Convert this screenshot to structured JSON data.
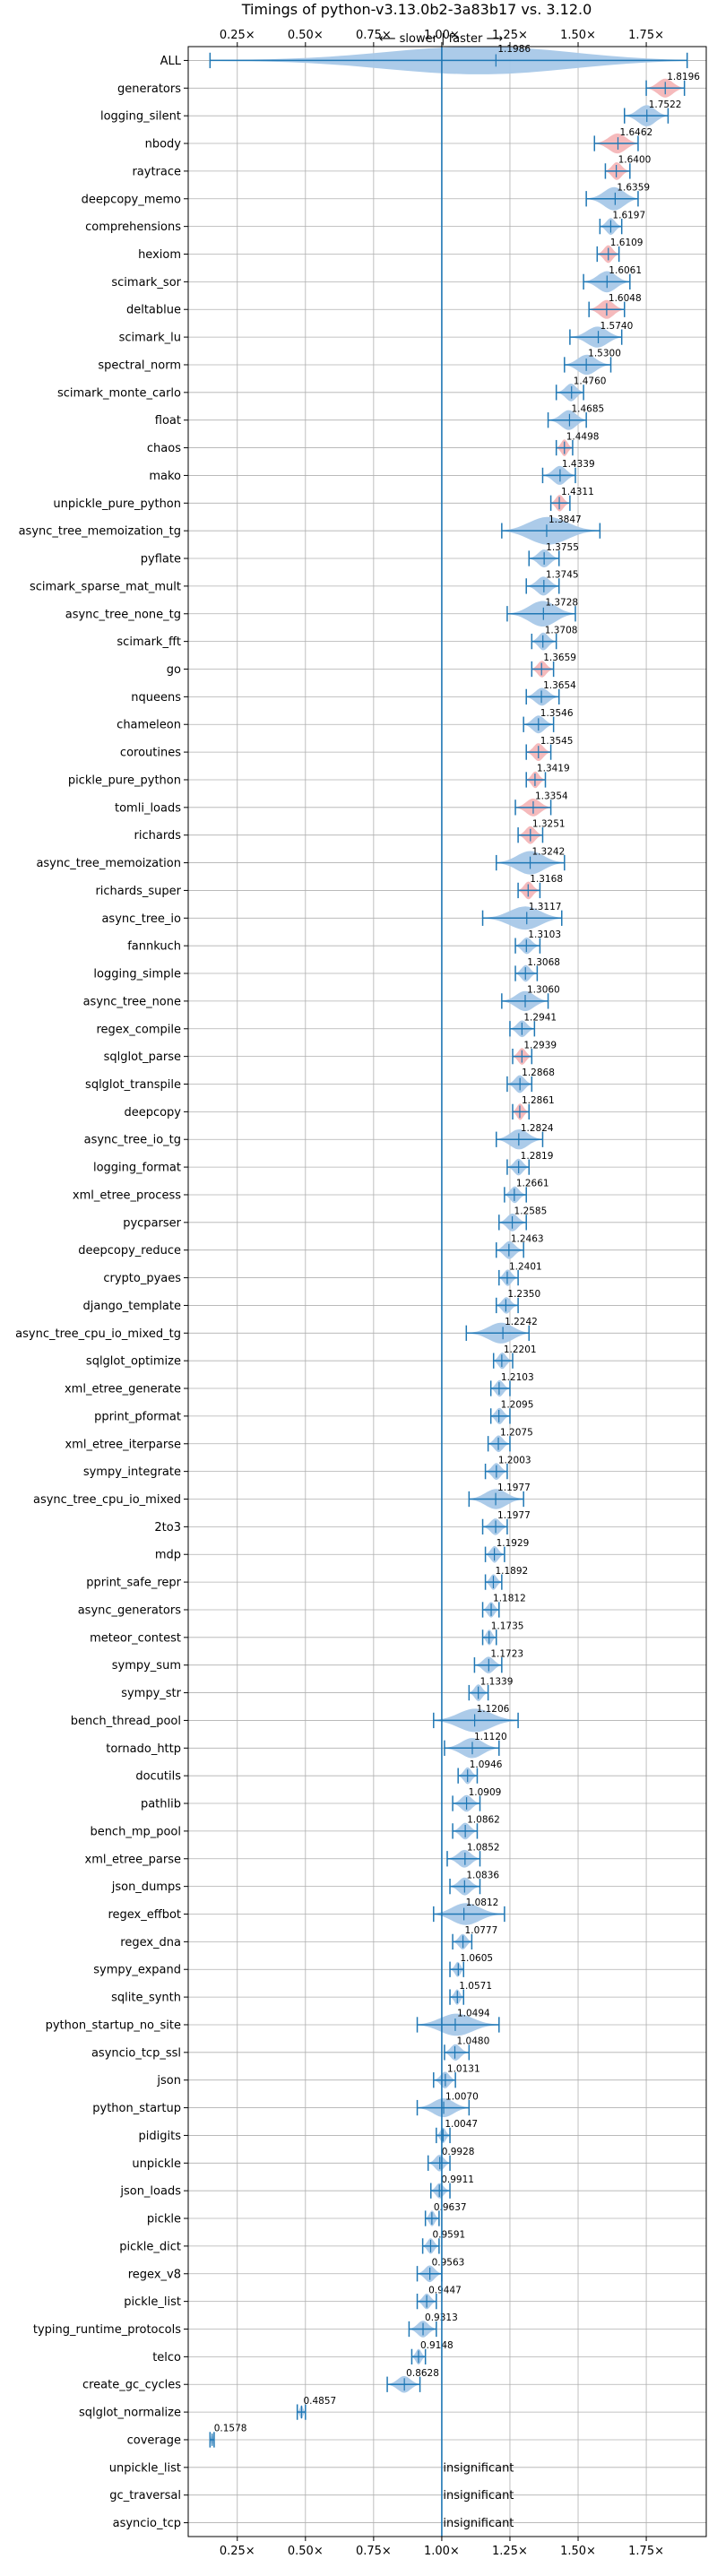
{
  "chart_data": {
    "type": "violin",
    "title": "Timings of python-v3.13.0b2-3a83b17 vs. 3.12.0",
    "direction_label": "⟵ slower | faster ⟶",
    "xlim": [
      0.07,
      1.97
    ],
    "xticks": [
      0.25,
      0.5,
      0.75,
      1.0,
      1.25,
      1.5,
      1.75
    ],
    "xtick_labels": [
      "0.25×",
      "0.50×",
      "0.75×",
      "1.00×",
      "1.25×",
      "1.50×",
      "1.75×"
    ],
    "reference_line": 1.0,
    "grid": true,
    "benchmarks": [
      {
        "name": "ALL",
        "value": 1.1986,
        "label": "1.1986",
        "lo": 0.15,
        "hi": 1.9,
        "spread": 0.5,
        "color": "blue"
      },
      {
        "name": "generators",
        "value": 1.8196,
        "label": "1.8196",
        "lo": 1.75,
        "hi": 1.89,
        "spread": 0.06,
        "color": "red"
      },
      {
        "name": "logging_silent",
        "value": 1.7522,
        "label": "1.7522",
        "lo": 1.67,
        "hi": 1.83,
        "spread": 0.08,
        "color": "blue"
      },
      {
        "name": "nbody",
        "value": 1.6462,
        "label": "1.6462",
        "lo": 1.56,
        "hi": 1.72,
        "spread": 0.07,
        "color": "red"
      },
      {
        "name": "raytrace",
        "value": 1.64,
        "label": "1.6400",
        "lo": 1.6,
        "hi": 1.69,
        "spread": 0.05,
        "color": "red"
      },
      {
        "name": "deepcopy_memo",
        "value": 1.6359,
        "label": "1.6359",
        "lo": 1.53,
        "hi": 1.72,
        "spread": 0.1,
        "color": "blue"
      },
      {
        "name": "comprehensions",
        "value": 1.6197,
        "label": "1.6197",
        "lo": 1.58,
        "hi": 1.66,
        "spread": 0.04,
        "color": "blue"
      },
      {
        "name": "hexiom",
        "value": 1.6109,
        "label": "1.6109",
        "lo": 1.57,
        "hi": 1.65,
        "spread": 0.05,
        "color": "red"
      },
      {
        "name": "scimark_sor",
        "value": 1.6061,
        "label": "1.6061",
        "lo": 1.52,
        "hi": 1.69,
        "spread": 0.08,
        "color": "blue"
      },
      {
        "name": "deltablue",
        "value": 1.6048,
        "label": "1.6048",
        "lo": 1.54,
        "hi": 1.67,
        "spread": 0.06,
        "color": "red"
      },
      {
        "name": "scimark_lu",
        "value": 1.574,
        "label": "1.5740",
        "lo": 1.47,
        "hi": 1.66,
        "spread": 0.08,
        "color": "blue"
      },
      {
        "name": "spectral_norm",
        "value": 1.53,
        "label": "1.5300",
        "lo": 1.45,
        "hi": 1.62,
        "spread": 0.07,
        "color": "blue"
      },
      {
        "name": "scimark_monte_carlo",
        "value": 1.476,
        "label": "1.4760",
        "lo": 1.42,
        "hi": 1.52,
        "spread": 0.05,
        "color": "blue"
      },
      {
        "name": "float",
        "value": 1.4685,
        "label": "1.4685",
        "lo": 1.39,
        "hi": 1.53,
        "spread": 0.07,
        "color": "blue"
      },
      {
        "name": "chaos",
        "value": 1.4498,
        "label": "1.4498",
        "lo": 1.42,
        "hi": 1.48,
        "spread": 0.04,
        "color": "red"
      },
      {
        "name": "mako",
        "value": 1.4339,
        "label": "1.4339",
        "lo": 1.37,
        "hi": 1.49,
        "spread": 0.06,
        "color": "blue"
      },
      {
        "name": "unpickle_pure_python",
        "value": 1.4311,
        "label": "1.4311",
        "lo": 1.4,
        "hi": 1.47,
        "spread": 0.04,
        "color": "red"
      },
      {
        "name": "async_tree_memoization_tg",
        "value": 1.3847,
        "label": "1.3847",
        "lo": 1.22,
        "hi": 1.58,
        "spread": 0.14,
        "color": "blue"
      },
      {
        "name": "pyflate",
        "value": 1.3755,
        "label": "1.3755",
        "lo": 1.32,
        "hi": 1.43,
        "spread": 0.05,
        "color": "blue"
      },
      {
        "name": "scimark_sparse_mat_mult",
        "value": 1.3745,
        "label": "1.3745",
        "lo": 1.31,
        "hi": 1.43,
        "spread": 0.06,
        "color": "blue"
      },
      {
        "name": "async_tree_none_tg",
        "value": 1.3728,
        "label": "1.3728",
        "lo": 1.24,
        "hi": 1.49,
        "spread": 0.12,
        "color": "blue"
      },
      {
        "name": "scimark_fft",
        "value": 1.3708,
        "label": "1.3708",
        "lo": 1.33,
        "hi": 1.42,
        "spread": 0.05,
        "color": "blue"
      },
      {
        "name": "go",
        "value": 1.3659,
        "label": "1.3659",
        "lo": 1.33,
        "hi": 1.41,
        "spread": 0.04,
        "color": "red"
      },
      {
        "name": "nqueens",
        "value": 1.3654,
        "label": "1.3654",
        "lo": 1.31,
        "hi": 1.43,
        "spread": 0.05,
        "color": "blue"
      },
      {
        "name": "chameleon",
        "value": 1.3546,
        "label": "1.3546",
        "lo": 1.3,
        "hi": 1.41,
        "spread": 0.05,
        "color": "blue"
      },
      {
        "name": "coroutines",
        "value": 1.3545,
        "label": "1.3545",
        "lo": 1.31,
        "hi": 1.4,
        "spread": 0.05,
        "color": "red"
      },
      {
        "name": "pickle_pure_python",
        "value": 1.3419,
        "label": "1.3419",
        "lo": 1.31,
        "hi": 1.38,
        "spread": 0.04,
        "color": "red"
      },
      {
        "name": "tomli_loads",
        "value": 1.3354,
        "label": "1.3354",
        "lo": 1.27,
        "hi": 1.4,
        "spread": 0.05,
        "color": "red"
      },
      {
        "name": "richards",
        "value": 1.3251,
        "label": "1.3251",
        "lo": 1.28,
        "hi": 1.37,
        "spread": 0.05,
        "color": "red"
      },
      {
        "name": "async_tree_memoization",
        "value": 1.3242,
        "label": "1.3242",
        "lo": 1.2,
        "hi": 1.45,
        "spread": 0.1,
        "color": "blue"
      },
      {
        "name": "richards_super",
        "value": 1.3168,
        "label": "1.3168",
        "lo": 1.28,
        "hi": 1.36,
        "spread": 0.05,
        "color": "red"
      },
      {
        "name": "async_tree_io",
        "value": 1.3117,
        "label": "1.3117",
        "lo": 1.15,
        "hi": 1.44,
        "spread": 0.1,
        "color": "blue"
      },
      {
        "name": "fannkuch",
        "value": 1.3103,
        "label": "1.3103",
        "lo": 1.27,
        "hi": 1.36,
        "spread": 0.04,
        "color": "blue"
      },
      {
        "name": "logging_simple",
        "value": 1.3068,
        "label": "1.3068",
        "lo": 1.27,
        "hi": 1.35,
        "spread": 0.04,
        "color": "blue"
      },
      {
        "name": "async_tree_none",
        "value": 1.306,
        "label": "1.3060",
        "lo": 1.22,
        "hi": 1.39,
        "spread": 0.07,
        "color": "blue"
      },
      {
        "name": "regex_compile",
        "value": 1.2941,
        "label": "1.2941",
        "lo": 1.25,
        "hi": 1.34,
        "spread": 0.04,
        "color": "blue"
      },
      {
        "name": "sqlglot_parse",
        "value": 1.2939,
        "label": "1.2939",
        "lo": 1.26,
        "hi": 1.33,
        "spread": 0.04,
        "color": "red"
      },
      {
        "name": "sqlglot_transpile",
        "value": 1.2868,
        "label": "1.2868",
        "lo": 1.24,
        "hi": 1.33,
        "spread": 0.05,
        "color": "blue"
      },
      {
        "name": "deepcopy",
        "value": 1.2861,
        "label": "1.2861",
        "lo": 1.26,
        "hi": 1.32,
        "spread": 0.04,
        "color": "red"
      },
      {
        "name": "async_tree_io_tg",
        "value": 1.2824,
        "label": "1.2824",
        "lo": 1.2,
        "hi": 1.37,
        "spread": 0.07,
        "color": "blue"
      },
      {
        "name": "logging_format",
        "value": 1.2819,
        "label": "1.2819",
        "lo": 1.24,
        "hi": 1.32,
        "spread": 0.04,
        "color": "blue"
      },
      {
        "name": "xml_etree_process",
        "value": 1.2661,
        "label": "1.2661",
        "lo": 1.23,
        "hi": 1.31,
        "spread": 0.04,
        "color": "blue"
      },
      {
        "name": "pycparser",
        "value": 1.2585,
        "label": "1.2585",
        "lo": 1.21,
        "hi": 1.31,
        "spread": 0.05,
        "color": "blue"
      },
      {
        "name": "deepcopy_reduce",
        "value": 1.2463,
        "label": "1.2463",
        "lo": 1.2,
        "hi": 1.3,
        "spread": 0.05,
        "color": "blue"
      },
      {
        "name": "crypto_pyaes",
        "value": 1.2401,
        "label": "1.2401",
        "lo": 1.21,
        "hi": 1.28,
        "spread": 0.04,
        "color": "blue"
      },
      {
        "name": "django_template",
        "value": 1.235,
        "label": "1.2350",
        "lo": 1.2,
        "hi": 1.28,
        "spread": 0.04,
        "color": "blue"
      },
      {
        "name": "async_tree_cpu_io_mixed_tg",
        "value": 1.2242,
        "label": "1.2242",
        "lo": 1.09,
        "hi": 1.32,
        "spread": 0.08,
        "color": "blue"
      },
      {
        "name": "sqlglot_optimize",
        "value": 1.2201,
        "label": "1.2201",
        "lo": 1.19,
        "hi": 1.26,
        "spread": 0.04,
        "color": "blue"
      },
      {
        "name": "xml_etree_generate",
        "value": 1.2103,
        "label": "1.2103",
        "lo": 1.18,
        "hi": 1.25,
        "spread": 0.04,
        "color": "blue"
      },
      {
        "name": "pprint_pformat",
        "value": 1.2095,
        "label": "1.2095",
        "lo": 1.18,
        "hi": 1.25,
        "spread": 0.04,
        "color": "blue"
      },
      {
        "name": "xml_etree_iterparse",
        "value": 1.2075,
        "label": "1.2075",
        "lo": 1.17,
        "hi": 1.25,
        "spread": 0.04,
        "color": "blue"
      },
      {
        "name": "sympy_integrate",
        "value": 1.2003,
        "label": "1.2003",
        "lo": 1.16,
        "hi": 1.24,
        "spread": 0.04,
        "color": "blue"
      },
      {
        "name": "async_tree_cpu_io_mixed",
        "value": 1.1977,
        "label": "1.1977",
        "lo": 1.1,
        "hi": 1.3,
        "spread": 0.07,
        "color": "blue"
      },
      {
        "name": "2to3",
        "value": 1.1977,
        "label": "1.1977",
        "lo": 1.15,
        "hi": 1.24,
        "spread": 0.04,
        "color": "blue"
      },
      {
        "name": "mdp",
        "value": 1.1929,
        "label": "1.1929",
        "lo": 1.16,
        "hi": 1.23,
        "spread": 0.04,
        "color": "blue"
      },
      {
        "name": "pprint_safe_repr",
        "value": 1.1892,
        "label": "1.1892",
        "lo": 1.16,
        "hi": 1.22,
        "spread": 0.03,
        "color": "blue"
      },
      {
        "name": "async_generators",
        "value": 1.1812,
        "label": "1.1812",
        "lo": 1.15,
        "hi": 1.21,
        "spread": 0.03,
        "color": "blue"
      },
      {
        "name": "meteor_contest",
        "value": 1.1735,
        "label": "1.1735",
        "lo": 1.15,
        "hi": 1.2,
        "spread": 0.03,
        "color": "blue"
      },
      {
        "name": "sympy_sum",
        "value": 1.1723,
        "label": "1.1723",
        "lo": 1.12,
        "hi": 1.22,
        "spread": 0.04,
        "color": "blue"
      },
      {
        "name": "sympy_str",
        "value": 1.1339,
        "label": "1.1339",
        "lo": 1.1,
        "hi": 1.17,
        "spread": 0.04,
        "color": "blue"
      },
      {
        "name": "bench_thread_pool",
        "value": 1.1206,
        "label": "1.1206",
        "lo": 0.97,
        "hi": 1.28,
        "spread": 0.1,
        "color": "blue"
      },
      {
        "name": "tornado_http",
        "value": 1.112,
        "label": "1.1120",
        "lo": 1.01,
        "hi": 1.21,
        "spread": 0.07,
        "color": "blue"
      },
      {
        "name": "docutils",
        "value": 1.0946,
        "label": "1.0946",
        "lo": 1.06,
        "hi": 1.13,
        "spread": 0.04,
        "color": "blue"
      },
      {
        "name": "pathlib",
        "value": 1.0909,
        "label": "1.0909",
        "lo": 1.04,
        "hi": 1.14,
        "spread": 0.04,
        "color": "blue"
      },
      {
        "name": "bench_mp_pool",
        "value": 1.0862,
        "label": "1.0862",
        "lo": 1.04,
        "hi": 1.13,
        "spread": 0.04,
        "color": "blue"
      },
      {
        "name": "xml_etree_parse",
        "value": 1.0852,
        "label": "1.0852",
        "lo": 1.02,
        "hi": 1.14,
        "spread": 0.05,
        "color": "blue"
      },
      {
        "name": "json_dumps",
        "value": 1.0836,
        "label": "1.0836",
        "lo": 1.03,
        "hi": 1.14,
        "spread": 0.05,
        "color": "blue"
      },
      {
        "name": "regex_effbot",
        "value": 1.0812,
        "label": "1.0812",
        "lo": 0.97,
        "hi": 1.23,
        "spread": 0.09,
        "color": "blue"
      },
      {
        "name": "regex_dna",
        "value": 1.0777,
        "label": "1.0777",
        "lo": 1.04,
        "hi": 1.11,
        "spread": 0.03,
        "color": "blue"
      },
      {
        "name": "sympy_expand",
        "value": 1.0605,
        "label": "1.0605",
        "lo": 1.03,
        "hi": 1.08,
        "spread": 0.03,
        "color": "blue"
      },
      {
        "name": "sqlite_synth",
        "value": 1.0571,
        "label": "1.0571",
        "lo": 1.03,
        "hi": 1.08,
        "spread": 0.03,
        "color": "blue"
      },
      {
        "name": "python_startup_no_site",
        "value": 1.0494,
        "label": "1.0494",
        "lo": 0.91,
        "hi": 1.21,
        "spread": 0.09,
        "color": "blue"
      },
      {
        "name": "asyncio_tcp_ssl",
        "value": 1.048,
        "label": "1.0480",
        "lo": 1.01,
        "hi": 1.1,
        "spread": 0.04,
        "color": "blue"
      },
      {
        "name": "json",
        "value": 1.0131,
        "label": "1.0131",
        "lo": 0.97,
        "hi": 1.05,
        "spread": 0.04,
        "color": "blue"
      },
      {
        "name": "python_startup",
        "value": 1.007,
        "label": "1.0070",
        "lo": 0.91,
        "hi": 1.1,
        "spread": 0.06,
        "color": "blue"
      },
      {
        "name": "pidigits",
        "value": 1.0047,
        "label": "1.0047",
        "lo": 0.98,
        "hi": 1.03,
        "spread": 0.03,
        "color": "blue"
      },
      {
        "name": "unpickle",
        "value": 0.9928,
        "label": "0.9928",
        "lo": 0.95,
        "hi": 1.03,
        "spread": 0.04,
        "color": "blue"
      },
      {
        "name": "json_loads",
        "value": 0.9911,
        "label": "0.9911",
        "lo": 0.96,
        "hi": 1.03,
        "spread": 0.03,
        "color": "blue"
      },
      {
        "name": "pickle",
        "value": 0.9637,
        "label": "0.9637",
        "lo": 0.94,
        "hi": 0.99,
        "spread": 0.03,
        "color": "blue"
      },
      {
        "name": "pickle_dict",
        "value": 0.9591,
        "label": "0.9591",
        "lo": 0.93,
        "hi": 0.99,
        "spread": 0.03,
        "color": "blue"
      },
      {
        "name": "regex_v8",
        "value": 0.9563,
        "label": "0.9563",
        "lo": 0.91,
        "hi": 1.0,
        "spread": 0.04,
        "color": "blue"
      },
      {
        "name": "pickle_list",
        "value": 0.9447,
        "label": "0.9447",
        "lo": 0.91,
        "hi": 0.98,
        "spread": 0.03,
        "color": "blue"
      },
      {
        "name": "typing_runtime_protocols",
        "value": 0.9313,
        "label": "0.9313",
        "lo": 0.88,
        "hi": 0.98,
        "spread": 0.04,
        "color": "blue"
      },
      {
        "name": "telco",
        "value": 0.9148,
        "label": "0.9148",
        "lo": 0.89,
        "hi": 0.94,
        "spread": 0.03,
        "color": "blue"
      },
      {
        "name": "create_gc_cycles",
        "value": 0.8628,
        "label": "0.8628",
        "lo": 0.8,
        "hi": 0.92,
        "spread": 0.04,
        "color": "blue"
      },
      {
        "name": "sqlglot_normalize",
        "value": 0.4857,
        "label": "0.4857",
        "lo": 0.47,
        "hi": 0.5,
        "spread": 0.015,
        "color": "blue"
      },
      {
        "name": "coverage",
        "value": 0.1578,
        "label": "0.1578",
        "lo": 0.15,
        "hi": 0.165,
        "spread": 0.008,
        "color": "blue"
      },
      {
        "name": "unpickle_list",
        "value": null,
        "label": "insignificant"
      },
      {
        "name": "gc_traversal",
        "value": null,
        "label": "insignificant"
      },
      {
        "name": "asyncio_tcp",
        "value": null,
        "label": "insignificant"
      }
    ],
    "colors": {
      "blue_fill": "#a8c8e8",
      "red_fill": "#f4b6b8",
      "line": "#1f77b4",
      "grid": "#b0b0b0",
      "text": "#000000"
    }
  }
}
